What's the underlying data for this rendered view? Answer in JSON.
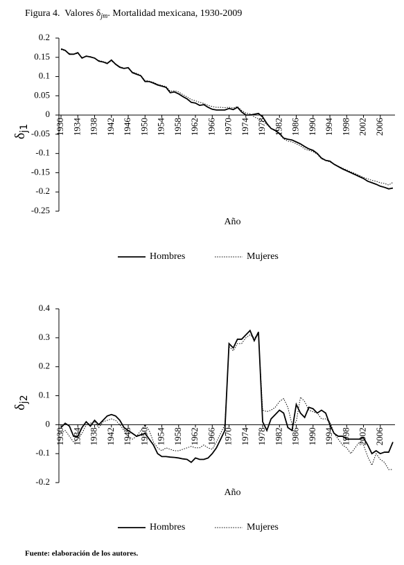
{
  "title": {
    "text": "Figura 4.  Valores δ",
    "subscript": "jm",
    "rest": ". Mortalidad mexicana, 1930-2009"
  },
  "source": "Fuente: elaboración de los autores.",
  "chart_data": [
    {
      "type": "line",
      "xlabel": "Año",
      "ylabel": {
        "symbol": "δ",
        "subscript": "j1"
      },
      "x": [
        1930,
        1931,
        1932,
        1933,
        1934,
        1935,
        1936,
        1937,
        1938,
        1939,
        1940,
        1941,
        1942,
        1943,
        1944,
        1945,
        1946,
        1947,
        1948,
        1949,
        1950,
        1951,
        1952,
        1953,
        1954,
        1955,
        1956,
        1957,
        1958,
        1959,
        1960,
        1961,
        1962,
        1963,
        1964,
        1965,
        1966,
        1967,
        1968,
        1969,
        1970,
        1971,
        1972,
        1973,
        1974,
        1975,
        1976,
        1977,
        1978,
        1979,
        1980,
        1981,
        1982,
        1983,
        1984,
        1985,
        1986,
        1987,
        1988,
        1989,
        1990,
        1991,
        1992,
        1993,
        1994,
        1995,
        1996,
        1997,
        1998,
        1999,
        2000,
        2001,
        2002,
        2003,
        2004,
        2005,
        2006,
        2007,
        2008,
        2009
      ],
      "xlim": [
        1930,
        2009
      ],
      "xticks": [
        1930,
        1934,
        1938,
        1942,
        1946,
        1950,
        1954,
        1958,
        1962,
        1966,
        1970,
        1974,
        1978,
        1982,
        1986,
        1990,
        1994,
        1998,
        2002,
        2006
      ],
      "ylim": [
        -0.25,
        0.2
      ],
      "yticks": [
        0.2,
        0.15,
        0.1,
        0.05,
        0,
        -0.05,
        -0.1,
        -0.15,
        -0.2,
        -0.25
      ],
      "legend": "bottom",
      "series": [
        {
          "name": "Hombres",
          "color": "#000000",
          "line_style": "solid",
          "values": [
            0.172,
            0.168,
            0.158,
            0.158,
            0.162,
            0.148,
            0.153,
            0.151,
            0.148,
            0.14,
            0.138,
            0.134,
            0.143,
            0.132,
            0.124,
            0.121,
            0.123,
            0.11,
            0.106,
            0.102,
            0.087,
            0.087,
            0.083,
            0.078,
            0.075,
            0.072,
            0.058,
            0.06,
            0.055,
            0.048,
            0.042,
            0.033,
            0.031,
            0.025,
            0.027,
            0.02,
            0.015,
            0.013,
            0.013,
            0.013,
            0.017,
            0.014,
            0.02,
            0.008,
            0,
            0,
            0.002,
            0.004,
            -0.005,
            -0.022,
            -0.035,
            -0.04,
            -0.048,
            -0.06,
            -0.063,
            -0.065,
            -0.07,
            -0.075,
            -0.082,
            -0.088,
            -0.092,
            -0.1,
            -0.112,
            -0.118,
            -0.12,
            -0.128,
            -0.134,
            -0.14,
            -0.145,
            -0.15,
            -0.155,
            -0.16,
            -0.165,
            -0.172,
            -0.176,
            -0.18,
            -0.185,
            -0.188,
            -0.192,
            -0.19
          ]
        },
        {
          "name": "Mujeres",
          "color": "#000000",
          "line_style": "dotted",
          "values": [
            0.17,
            0.167,
            0.16,
            0.158,
            0.16,
            0.15,
            0.152,
            0.152,
            0.147,
            0.142,
            0.139,
            0.136,
            0.14,
            0.133,
            0.126,
            0.122,
            0.122,
            0.112,
            0.108,
            0.103,
            0.09,
            0.088,
            0.085,
            0.08,
            0.077,
            0.074,
            0.062,
            0.063,
            0.06,
            0.053,
            0.047,
            0.04,
            0.037,
            0.033,
            0.03,
            0.025,
            0.022,
            0.02,
            0.02,
            0.019,
            0.02,
            0.018,
            0.022,
            0.012,
            0.005,
            0.003,
            -0.005,
            -0.01,
            -0.015,
            -0.025,
            -0.035,
            -0.042,
            -0.05,
            -0.062,
            -0.068,
            -0.07,
            -0.075,
            -0.08,
            -0.088,
            -0.092,
            -0.095,
            -0.102,
            -0.114,
            -0.118,
            -0.122,
            -0.128,
            -0.133,
            -0.138,
            -0.143,
            -0.148,
            -0.152,
            -0.157,
            -0.162,
            -0.166,
            -0.17,
            -0.172,
            -0.176,
            -0.178,
            -0.182,
            -0.175
          ]
        }
      ]
    },
    {
      "type": "line",
      "xlabel": "Año",
      "ylabel": {
        "symbol": "δ",
        "subscript": "j2"
      },
      "x": [
        1930,
        1931,
        1932,
        1933,
        1934,
        1935,
        1936,
        1937,
        1938,
        1939,
        1940,
        1941,
        1942,
        1943,
        1944,
        1945,
        1946,
        1947,
        1948,
        1949,
        1950,
        1951,
        1952,
        1953,
        1954,
        1955,
        1956,
        1957,
        1958,
        1959,
        1960,
        1961,
        1962,
        1963,
        1964,
        1965,
        1966,
        1967,
        1968,
        1969,
        1970,
        1971,
        1972,
        1973,
        1974,
        1975,
        1976,
        1977,
        1978,
        1979,
        1980,
        1981,
        1982,
        1983,
        1984,
        1985,
        1986,
        1987,
        1988,
        1989,
        1990,
        1991,
        1992,
        1993,
        1994,
        1995,
        1996,
        1997,
        1998,
        1999,
        2000,
        2001,
        2002,
        2003,
        2004,
        2005,
        2006,
        2007,
        2008,
        2009
      ],
      "xlim": [
        1930,
        2009
      ],
      "xticks": [
        1930,
        1934,
        1938,
        1942,
        1946,
        1950,
        1954,
        1958,
        1962,
        1966,
        1970,
        1974,
        1978,
        1982,
        1986,
        1990,
        1994,
        1998,
        2002,
        2006
      ],
      "ylim": [
        -0.2,
        0.4
      ],
      "yticks": [
        0.4,
        0.3,
        0.2,
        0.1,
        0,
        -0.1,
        -0.2
      ],
      "legend": "bottom",
      "series": [
        {
          "name": "Hombres",
          "color": "#000000",
          "line_style": "solid",
          "values": [
            -0.01,
            0.005,
            -0.005,
            -0.04,
            -0.04,
            -0.01,
            0.01,
            -0.005,
            0.015,
            0,
            0.015,
            0.03,
            0.035,
            0.03,
            0.015,
            -0.01,
            -0.02,
            -0.03,
            -0.04,
            -0.035,
            -0.03,
            -0.05,
            -0.07,
            -0.1,
            -0.11,
            -0.11,
            -0.112,
            -0.113,
            -0.115,
            -0.118,
            -0.12,
            -0.13,
            -0.115,
            -0.12,
            -0.12,
            -0.115,
            -0.1,
            -0.08,
            -0.05,
            -0.02,
            0.28,
            0.265,
            0.295,
            0.295,
            0.31,
            0.325,
            0.29,
            0.32,
            0.01,
            -0.02,
            0.02,
            0.035,
            0.05,
            0.04,
            -0.01,
            -0.02,
            0.07,
            0.04,
            0.025,
            0.06,
            0.055,
            0.04,
            0.05,
            0.04,
            0,
            -0.03,
            -0.04,
            -0.04,
            -0.05,
            -0.05,
            -0.05,
            -0.05,
            -0.045,
            -0.07,
            -0.1,
            -0.09,
            -0.1,
            -0.095,
            -0.095,
            -0.06
          ]
        },
        {
          "name": "Mujeres",
          "color": "#000000",
          "line_style": "dotted",
          "values": [
            -0.03,
            -0.02,
            -0.04,
            -0.06,
            -0.05,
            -0.03,
            0,
            0.005,
            0.01,
            -0.01,
            0.01,
            0.015,
            0.02,
            0.015,
            0,
            -0.02,
            -0.04,
            -0.05,
            -0.04,
            -0.02,
            0,
            -0.02,
            -0.06,
            -0.08,
            -0.09,
            -0.08,
            -0.085,
            -0.09,
            -0.09,
            -0.085,
            -0.08,
            -0.075,
            -0.08,
            -0.08,
            -0.07,
            -0.08,
            -0.085,
            -0.06,
            -0.03,
            0,
            0.27,
            0.255,
            0.28,
            0.28,
            0.3,
            0.31,
            0.3,
            0.31,
            0.05,
            0.045,
            0.05,
            0.06,
            0.08,
            0.09,
            0.06,
            0,
            0.01,
            0.095,
            0.08,
            0.05,
            0.045,
            0.04,
            0.02,
            0.02,
            0.01,
            -0.03,
            -0.05,
            -0.07,
            -0.08,
            -0.1,
            -0.08,
            -0.06,
            -0.07,
            -0.11,
            -0.14,
            -0.1,
            -0.12,
            -0.13,
            -0.155,
            -0.155
          ]
        }
      ]
    }
  ]
}
